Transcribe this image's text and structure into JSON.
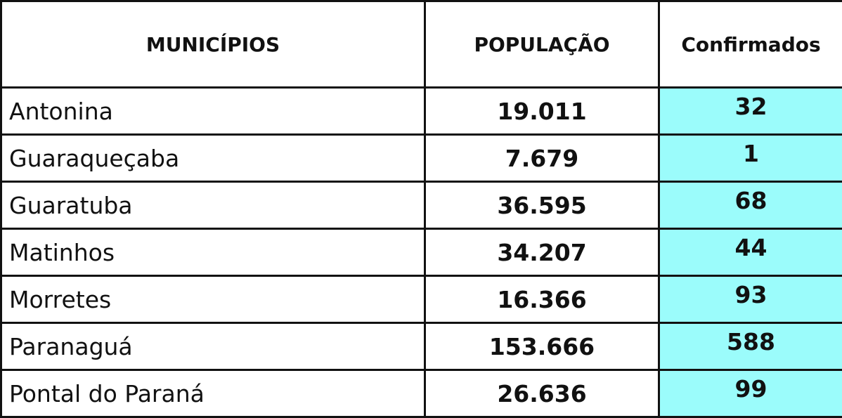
{
  "table": {
    "headers": [
      "MUNICÍPIOS",
      "POPULAÇÃO",
      "Confirmados"
    ],
    "rows": [
      [
        "Antonina",
        "19.011",
        "32"
      ],
      [
        "Guaraqueçaba",
        "7.679",
        "1"
      ],
      [
        "Guaratuba",
        "36.595",
        "68"
      ],
      [
        "Matinhos",
        "34.207",
        "44"
      ],
      [
        "Morretes",
        "16.366",
        "93"
      ],
      [
        "Paranaguá",
        "153.666",
        "588"
      ],
      [
        "Pontal do Paraná",
        "26.636",
        "99"
      ]
    ]
  }
}
